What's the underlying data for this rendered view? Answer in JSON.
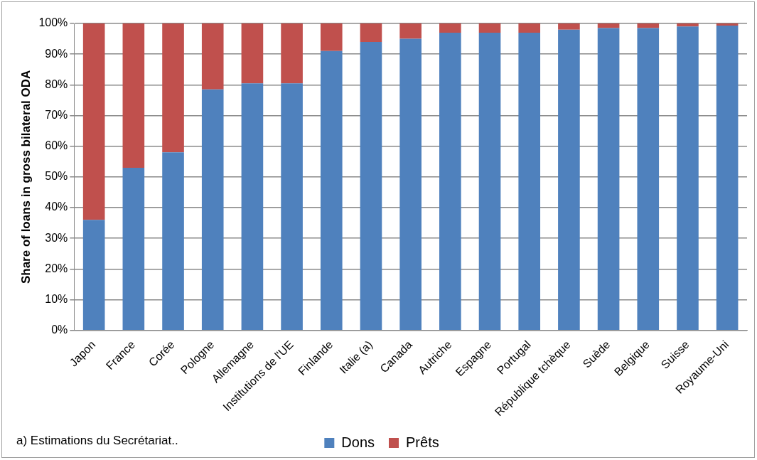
{
  "chart_data": {
    "type": "bar",
    "stacked": true,
    "ylabel": "Share of loans in gross bilateral ODA",
    "categories": [
      "Japon",
      "France",
      "Corée",
      "Pologne",
      "Allemagne",
      "Institutions de l'UE",
      "Finlande",
      "Italie (a)",
      "Canada",
      "Autriche",
      "Espagne",
      "Portugal",
      "République tchèque",
      "Suède",
      "Belgique",
      "Suisse",
      "Royaume-Uni"
    ],
    "series": [
      {
        "name": "Dons",
        "color": "#4f81bd",
        "values": [
          36,
          53,
          58,
          78.5,
          80.5,
          80.5,
          91,
          94,
          95,
          97,
          97,
          97,
          98,
          98.5,
          98.5,
          99,
          99.3
        ]
      },
      {
        "name": "Prêts",
        "color": "#c0504d",
        "values": [
          64,
          47,
          42,
          21.5,
          19.5,
          19.5,
          9,
          6,
          5,
          3,
          3,
          3,
          2,
          1.5,
          1.5,
          1,
          0.7
        ]
      }
    ],
    "ylim": [
      0,
      100
    ],
    "yticks": [
      {
        "value": 0,
        "label": "0%"
      },
      {
        "value": 10,
        "label": "10%"
      },
      {
        "value": 20,
        "label": "20%"
      },
      {
        "value": 30,
        "label": "30%"
      },
      {
        "value": 40,
        "label": "40%"
      },
      {
        "value": 50,
        "label": "50%"
      },
      {
        "value": 60,
        "label": "60%"
      },
      {
        "value": 70,
        "label": "70%"
      },
      {
        "value": 80,
        "label": "80%"
      },
      {
        "value": 90,
        "label": "90%"
      },
      {
        "value": 100,
        "label": "100%"
      }
    ],
    "grid": "y",
    "legend": "bottom",
    "annotations": [
      "a) Estimations du Secrétariat.."
    ]
  }
}
